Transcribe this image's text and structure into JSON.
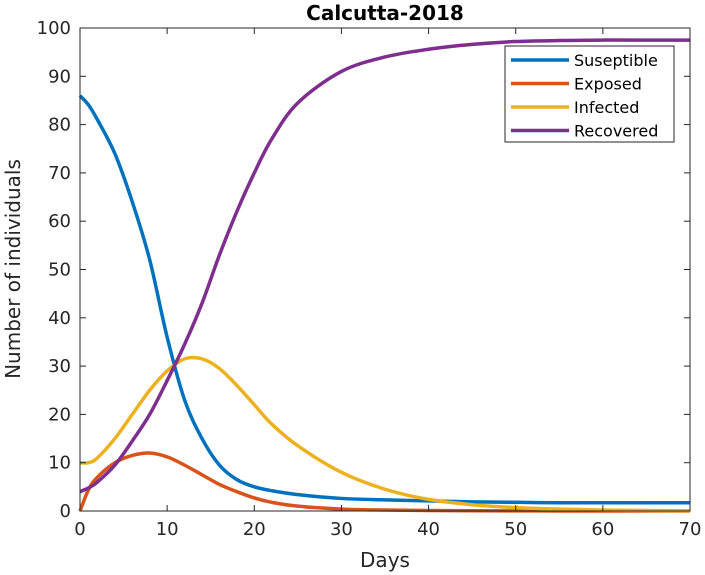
{
  "chart_data": {
    "type": "line",
    "title": "Calcutta-2018",
    "xlabel": "Days",
    "ylabel": "Number of individuals",
    "xlim": [
      0,
      70
    ],
    "ylim": [
      0,
      100
    ],
    "xticks": [
      0,
      10,
      20,
      30,
      40,
      50,
      60,
      70
    ],
    "yticks": [
      0,
      10,
      20,
      30,
      40,
      50,
      60,
      70,
      80,
      90,
      100
    ],
    "grid": false,
    "legend_position": "top-right",
    "x": [
      0,
      1,
      2,
      4,
      6,
      8,
      10,
      12,
      14,
      16,
      18,
      20,
      22,
      25,
      30,
      35,
      40,
      45,
      50,
      55,
      60,
      65,
      70
    ],
    "series": [
      {
        "name": "Suseptible",
        "color": "#0072BD",
        "values": [
          86,
          84,
          81,
          74,
          64,
          52,
          36,
          23,
          15,
          9.5,
          6.5,
          5,
          4.2,
          3.4,
          2.6,
          2.3,
          2.1,
          1.9,
          1.8,
          1.7,
          1.7,
          1.7,
          1.7
        ]
      },
      {
        "name": "Exposed",
        "color": "#D95319",
        "values": [
          0,
          4.5,
          7,
          10,
          11.5,
          12,
          11.2,
          9.5,
          7.5,
          5.5,
          4,
          2.7,
          1.8,
          1,
          0.4,
          0.2,
          0.1,
          0.05,
          0.02,
          0.01,
          0,
          0,
          0
        ]
      },
      {
        "name": "Infected",
        "color": "#EDB120",
        "values": [
          10,
          10,
          11,
          15,
          20,
          25,
          29,
          31.5,
          31.5,
          29.5,
          26,
          22,
          18,
          13.5,
          8,
          4.5,
          2.4,
          1.3,
          0.7,
          0.4,
          0.2,
          0.1,
          0.05
        ]
      },
      {
        "name": "Recovered",
        "color": "#7E2F8E",
        "values": [
          4,
          4.8,
          6,
          9.5,
          14.5,
          20,
          27,
          34.5,
          43,
          53,
          62,
          70,
          77,
          84.5,
          91,
          94,
          95.6,
          96.6,
          97.2,
          97.4,
          97.5,
          97.5,
          97.5
        ]
      }
    ]
  }
}
